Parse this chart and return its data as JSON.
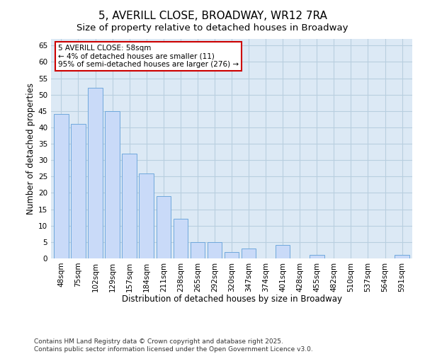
{
  "title": "5, AVERILL CLOSE, BROADWAY, WR12 7RA",
  "subtitle": "Size of property relative to detached houses in Broadway",
  "xlabel": "Distribution of detached houses by size in Broadway",
  "ylabel": "Number of detached properties",
  "categories": [
    "48sqm",
    "75sqm",
    "102sqm",
    "129sqm",
    "157sqm",
    "184sqm",
    "211sqm",
    "238sqm",
    "265sqm",
    "292sqm",
    "320sqm",
    "347sqm",
    "374sqm",
    "401sqm",
    "428sqm",
    "455sqm",
    "482sqm",
    "510sqm",
    "537sqm",
    "564sqm",
    "591sqm"
  ],
  "values": [
    44,
    41,
    52,
    45,
    32,
    26,
    19,
    12,
    5,
    5,
    2,
    3,
    0,
    4,
    0,
    1,
    0,
    0,
    0,
    0,
    1
  ],
  "bar_color": "#c9daf8",
  "bar_edge_color": "#6fa8dc",
  "annotation_text": "5 AVERILL CLOSE: 58sqm\n← 4% of detached houses are smaller (11)\n95% of semi-detached houses are larger (276) →",
  "annotation_box_color": "#ffffff",
  "annotation_box_edge_color": "#cc0000",
  "ylim": [
    0,
    67
  ],
  "yticks": [
    0,
    5,
    10,
    15,
    20,
    25,
    30,
    35,
    40,
    45,
    50,
    55,
    60,
    65
  ],
  "title_fontsize": 11,
  "subtitle_fontsize": 9.5,
  "axis_label_fontsize": 8.5,
  "tick_fontsize": 7.5,
  "annotation_fontsize": 7.5,
  "footer": "Contains HM Land Registry data © Crown copyright and database right 2025.\nContains public sector information licensed under the Open Government Licence v3.0.",
  "footer_fontsize": 6.5,
  "grid_color": "#b8cfe0",
  "background_color": "#dce9f5"
}
